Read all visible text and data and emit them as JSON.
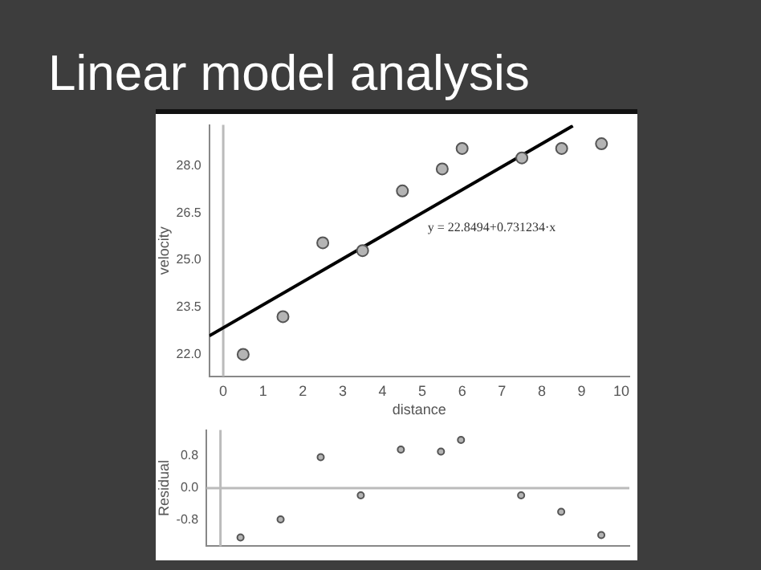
{
  "chart_data": [
    {
      "type": "scatter",
      "title": "Linear model analysis",
      "xlabel": "distance",
      "ylabel": "velocity",
      "xlim": [
        -0.35,
        10.2
      ],
      "xticks": [
        0,
        1,
        2,
        3,
        4,
        5,
        6,
        7,
        8,
        9,
        10
      ],
      "ylim": [
        21.3,
        29.3
      ],
      "yticks": [
        {
          "value": 22,
          "label": "22.0"
        },
        {
          "value": 23.5,
          "label": "23.5"
        },
        {
          "value": 25,
          "label": "25.0"
        },
        {
          "value": 26.5,
          "label": "26.5"
        },
        {
          "value": 28,
          "label": "28.0"
        }
      ],
      "grid": false,
      "legend": false,
      "series": [
        {
          "type": "scatter",
          "marker": "circle",
          "color": "#b4b4b4",
          "x": [
            0.5,
            1.5,
            2.5,
            3.5,
            4.5,
            5.5,
            6,
            7.5,
            8.5,
            9.5
          ],
          "values": [
            22.0,
            23.2,
            25.55,
            25.3,
            27.2,
            27.9,
            28.55,
            28.25,
            28.55,
            28.7
          ]
        },
        {
          "type": "line",
          "color": "#000000",
          "x": [
            -0.35,
            8.78
          ],
          "values": [
            22.59,
            29.27
          ]
        }
      ],
      "ref_lines": [
        {
          "axis": "x",
          "value": 0,
          "color": "#bbbbbb"
        }
      ],
      "annotations": [
        "y = 22.8494+0.731234·x"
      ]
    },
    {
      "type": "scatter",
      "ylabel": "Residual",
      "xlim": [
        -0.35,
        10.2
      ],
      "ylim": [
        -1.45,
        1.45
      ],
      "yticks": [
        {
          "value": 0.8,
          "label": "0.8"
        },
        {
          "value": 0,
          "label": "0.0"
        },
        {
          "value": -0.8,
          "label": "-0.8"
        }
      ],
      "tick_labels": "y",
      "grid": false,
      "legend": false,
      "series": [
        {
          "type": "scatter",
          "marker": "circle",
          "color": "#b4b4b4",
          "x": [
            0.5,
            1.5,
            2.5,
            3.5,
            4.5,
            5.5,
            6,
            7.5,
            8.5,
            9.5
          ],
          "values": [
            -1.23,
            -0.78,
            0.77,
            -0.18,
            0.96,
            0.91,
            1.2,
            -0.18,
            -0.59,
            -1.17
          ]
        }
      ],
      "ref_lines": [
        {
          "axis": "x",
          "value": 0,
          "color": "#bbbbbb"
        },
        {
          "axis": "y",
          "value": 0,
          "color": "#bbbbbb"
        }
      ]
    }
  ]
}
